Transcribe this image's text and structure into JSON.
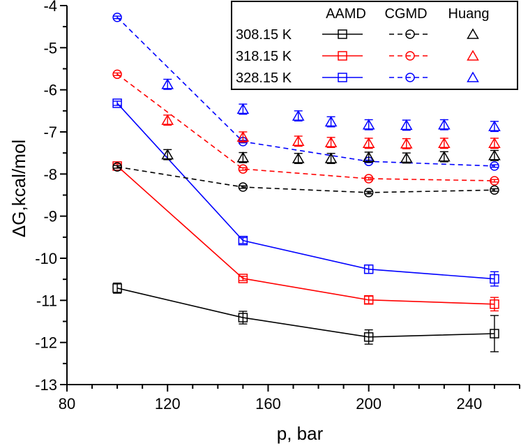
{
  "chart_data": {
    "type": "line",
    "xlabel": "p, bar",
    "ylabel": "ΔG,kcal/mol",
    "xlim": [
      80,
      260
    ],
    "ylim": [
      -13,
      -4
    ],
    "xticks": [
      80,
      120,
      160,
      200,
      240
    ],
    "yticks": [
      -4,
      -5,
      -6,
      -7,
      -8,
      -9,
      -10,
      -11,
      -12,
      -13
    ],
    "grid": false,
    "legend": {
      "placement": "top-right",
      "column_headers": [
        "AAMD",
        "CGMD",
        "Huang"
      ],
      "row_labels": [
        "308.15 K",
        "318.15 K",
        "328.15 K"
      ]
    },
    "colors": {
      "308.15 K": "#000000",
      "318.15 K": "#ff0000",
      "328.15 K": "#0000ff"
    },
    "series": [
      {
        "group": "AAMD",
        "temperature": "308.15 K",
        "marker": "square",
        "line": "solid",
        "x": [
          100,
          150,
          200,
          250
        ],
        "y": [
          -10.71,
          -11.41,
          -11.87,
          -11.79
        ],
        "err": [
          0.12,
          0.15,
          0.17,
          0.43
        ]
      },
      {
        "group": "AAMD",
        "temperature": "318.15 K",
        "marker": "square",
        "line": "solid",
        "x": [
          100,
          150,
          200,
          250
        ],
        "y": [
          -7.81,
          -10.48,
          -10.99,
          -11.09
        ],
        "err": [
          0.05,
          0.05,
          0.09,
          0.16
        ]
      },
      {
        "group": "AAMD",
        "temperature": "328.15 K",
        "marker": "square",
        "line": "solid",
        "x": [
          100,
          150,
          200,
          250
        ],
        "y": [
          -6.32,
          -9.58,
          -10.26,
          -10.49
        ],
        "err": [
          0.05,
          0.07,
          0.1,
          0.17
        ]
      },
      {
        "group": "CGMD",
        "temperature": "308.15 K",
        "marker": "circle",
        "line": "dashed",
        "x": [
          100,
          150,
          200,
          250
        ],
        "y": [
          -7.83,
          -8.31,
          -8.44,
          -8.38
        ],
        "err": [
          0.03,
          0.03,
          0.03,
          0.03
        ]
      },
      {
        "group": "CGMD",
        "temperature": "318.15 K",
        "marker": "circle",
        "line": "dashed",
        "x": [
          100,
          150,
          200,
          250
        ],
        "y": [
          -5.63,
          -7.88,
          -8.11,
          -8.16
        ],
        "err": [
          0.03,
          0.03,
          0.03,
          0.03
        ]
      },
      {
        "group": "CGMD",
        "temperature": "328.15 K",
        "marker": "circle",
        "line": "dashed",
        "x": [
          100,
          150,
          200,
          250
        ],
        "y": [
          -4.28,
          -7.23,
          -7.7,
          -7.81
        ],
        "err": [
          0.03,
          0.03,
          0.03,
          0.03
        ]
      },
      {
        "group": "Huang",
        "temperature": "308.15 K",
        "marker": "triangle",
        "line": "none",
        "x": [
          120,
          150,
          172,
          185,
          200,
          215,
          230,
          250
        ],
        "y": [
          -7.54,
          -7.61,
          -7.63,
          -7.63,
          -7.6,
          -7.62,
          -7.59,
          -7.56
        ],
        "err": [
          0.12,
          0.12,
          0.12,
          0.12,
          0.12,
          0.12,
          0.12,
          0.12
        ]
      },
      {
        "group": "Huang",
        "temperature": "318.15 K",
        "marker": "triangle",
        "line": "none",
        "x": [
          120,
          150,
          172,
          185,
          200,
          215,
          230,
          250
        ],
        "y": [
          -6.72,
          -7.12,
          -7.22,
          -7.25,
          -7.27,
          -7.28,
          -7.27,
          -7.27
        ],
        "err": [
          0.12,
          0.12,
          0.12,
          0.12,
          0.12,
          0.12,
          0.12,
          0.12
        ]
      },
      {
        "group": "Huang",
        "temperature": "328.15 K",
        "marker": "triangle",
        "line": "none",
        "x": [
          120,
          150,
          172,
          185,
          200,
          215,
          230,
          250
        ],
        "y": [
          -5.87,
          -6.46,
          -6.62,
          -6.76,
          -6.83,
          -6.84,
          -6.83,
          -6.87
        ],
        "err": [
          0.12,
          0.12,
          0.12,
          0.12,
          0.12,
          0.12,
          0.12,
          0.12
        ]
      }
    ]
  }
}
